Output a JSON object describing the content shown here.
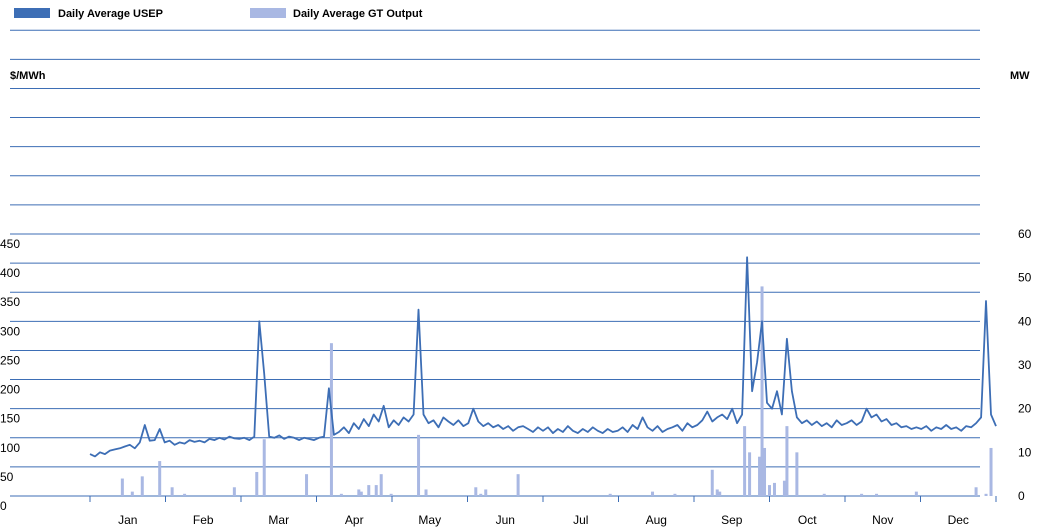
{
  "chart_data": {
    "type": "line",
    "y_label": "$/MWh",
    "y2_label": "MW",
    "categories": [
      "Jan",
      "Feb",
      "Mar",
      "Apr",
      "May",
      "Jun",
      "Jul",
      "Aug",
      "Sep",
      "Oct",
      "Nov",
      "Dec"
    ],
    "xlim": [
      1,
      365
    ],
    "ylim": [
      0,
      450
    ],
    "yticks": [
      0,
      50,
      100,
      150,
      200,
      250,
      300,
      350,
      400,
      450
    ],
    "y2lim": [
      0,
      60
    ],
    "y2ticks": [
      0,
      10,
      20,
      30,
      40,
      50,
      60
    ],
    "grid": true,
    "series": [
      {
        "name": "Daily Average USEP",
        "color": "#3d6eb5",
        "type": "line",
        "x": [
          1,
          3,
          5,
          7,
          9,
          11,
          13,
          15,
          17,
          19,
          21,
          23,
          25,
          27,
          29,
          31,
          33,
          35,
          37,
          39,
          41,
          43,
          45,
          47,
          49,
          51,
          53,
          55,
          57,
          59,
          61,
          63,
          65,
          67,
          69,
          71,
          73,
          75,
          77,
          79,
          81,
          83,
          85,
          87,
          89,
          91,
          93,
          95,
          97,
          99,
          101,
          103,
          105,
          107,
          109,
          111,
          113,
          115,
          117,
          119,
          121,
          123,
          125,
          127,
          129,
          131,
          133,
          135,
          137,
          139,
          141,
          143,
          145,
          147,
          149,
          151,
          153,
          155,
          157,
          159,
          161,
          163,
          165,
          167,
          169,
          171,
          173,
          175,
          177,
          179,
          181,
          183,
          185,
          187,
          189,
          191,
          193,
          195,
          197,
          199,
          201,
          203,
          205,
          207,
          209,
          211,
          213,
          215,
          217,
          219,
          221,
          223,
          225,
          227,
          229,
          231,
          233,
          235,
          237,
          239,
          241,
          243,
          245,
          247,
          249,
          251,
          253,
          255,
          257,
          259,
          261,
          263,
          265,
          267,
          269,
          271,
          273,
          275,
          277,
          279,
          281,
          283,
          285,
          287,
          289,
          291,
          293,
          295,
          297,
          299,
          301,
          303,
          305,
          307,
          309,
          311,
          313,
          315,
          317,
          319,
          321,
          323,
          325,
          327,
          329,
          331,
          333,
          335,
          337,
          339,
          341,
          343,
          345,
          347,
          349,
          351,
          353,
          355,
          357,
          359,
          361,
          363,
          365
        ],
        "values": [
          72,
          68,
          75,
          72,
          78,
          80,
          82,
          85,
          88,
          82,
          92,
          122,
          95,
          96,
          115,
          92,
          95,
          88,
          92,
          90,
          96,
          93,
          95,
          92,
          98,
          96,
          100,
          97,
          102,
          99,
          98,
          100,
          96,
          102,
          300,
          210,
          102,
          100,
          104,
          98,
          102,
          100,
          96,
          100,
          98,
          96,
          100,
          102,
          185,
          105,
          110,
          118,
          108,
          125,
          115,
          132,
          120,
          140,
          128,
          155,
          118,
          130,
          122,
          135,
          128,
          140,
          320,
          140,
          125,
          130,
          118,
          135,
          128,
          122,
          130,
          120,
          125,
          150,
          128,
          120,
          125,
          118,
          122,
          115,
          120,
          112,
          118,
          120,
          115,
          110,
          118,
          112,
          118,
          108,
          115,
          110,
          120,
          112,
          108,
          115,
          110,
          118,
          112,
          108,
          115,
          110,
          112,
          118,
          110,
          122,
          115,
          135,
          118,
          112,
          120,
          110,
          115,
          118,
          122,
          112,
          125,
          118,
          122,
          130,
          145,
          128,
          135,
          140,
          132,
          150,
          125,
          140,
          410,
          180,
          230,
          300,
          160,
          150,
          180,
          140,
          270,
          180,
          135,
          125,
          130,
          122,
          128,
          120,
          125,
          118,
          130,
          122,
          125,
          130,
          122,
          128,
          150,
          135,
          140,
          128,
          132,
          122,
          125,
          118,
          120,
          115,
          118,
          115,
          120,
          112,
          118,
          115,
          122,
          115,
          118,
          112,
          120,
          118,
          125,
          135,
          335,
          140,
          120
        ]
      },
      {
        "name": "Daily Average GT Output",
        "color": "#a9b8e3",
        "type": "bar",
        "axis": "y2",
        "x": [
          14,
          18,
          22,
          29,
          34,
          39,
          59,
          68,
          71,
          88,
          98,
          102,
          109,
          110,
          113,
          116,
          118,
          122,
          133,
          136,
          156,
          158,
          160,
          173,
          210,
          227,
          236,
          251,
          253,
          254,
          264,
          266,
          270,
          271,
          272,
          274,
          276,
          280,
          281,
          285,
          296,
          311,
          317,
          333,
          357,
          361,
          363
        ],
        "values": [
          4,
          1,
          4.5,
          8,
          2,
          0.5,
          2,
          5.5,
          13,
          5,
          35,
          0.5,
          1.5,
          1,
          2.5,
          2.5,
          5,
          0.5,
          14,
          1.5,
          2,
          0.5,
          1.5,
          5,
          0.5,
          1,
          0.5,
          6,
          1.5,
          1,
          16,
          10,
          9,
          48,
          11,
          2.5,
          3,
          3.5,
          16,
          10,
          0.5,
          0.5,
          0.5,
          1,
          2,
          0.5,
          11
        ]
      }
    ]
  }
}
